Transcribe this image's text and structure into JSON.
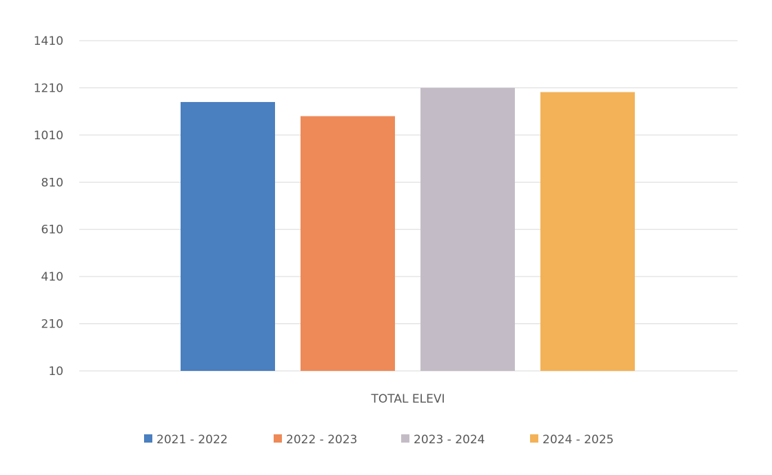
{
  "chart_data": {
    "type": "bar",
    "categories": [
      "TOTAL ELEVI"
    ],
    "series": [
      {
        "name": "2021 - 2022",
        "values": [
          1150
        ],
        "color": "#4a7fc0"
      },
      {
        "name": "2022 - 2023",
        "values": [
          1090
        ],
        "color": "#ee8a58"
      },
      {
        "name": "2023 - 2024",
        "values": [
          1210
        ],
        "color": "#c3bcc6"
      },
      {
        "name": "2024 - 2025",
        "values": [
          1192
        ],
        "color": "#f3b257"
      }
    ],
    "yticks": [
      "1410",
      "1210",
      "1010",
      "810",
      "610",
      "410",
      "210",
      "10"
    ],
    "ylim": [
      10,
      1410
    ],
    "xlabel": "",
    "ylabel": "",
    "title": "",
    "grid": true,
    "legend_position": "bottom"
  }
}
